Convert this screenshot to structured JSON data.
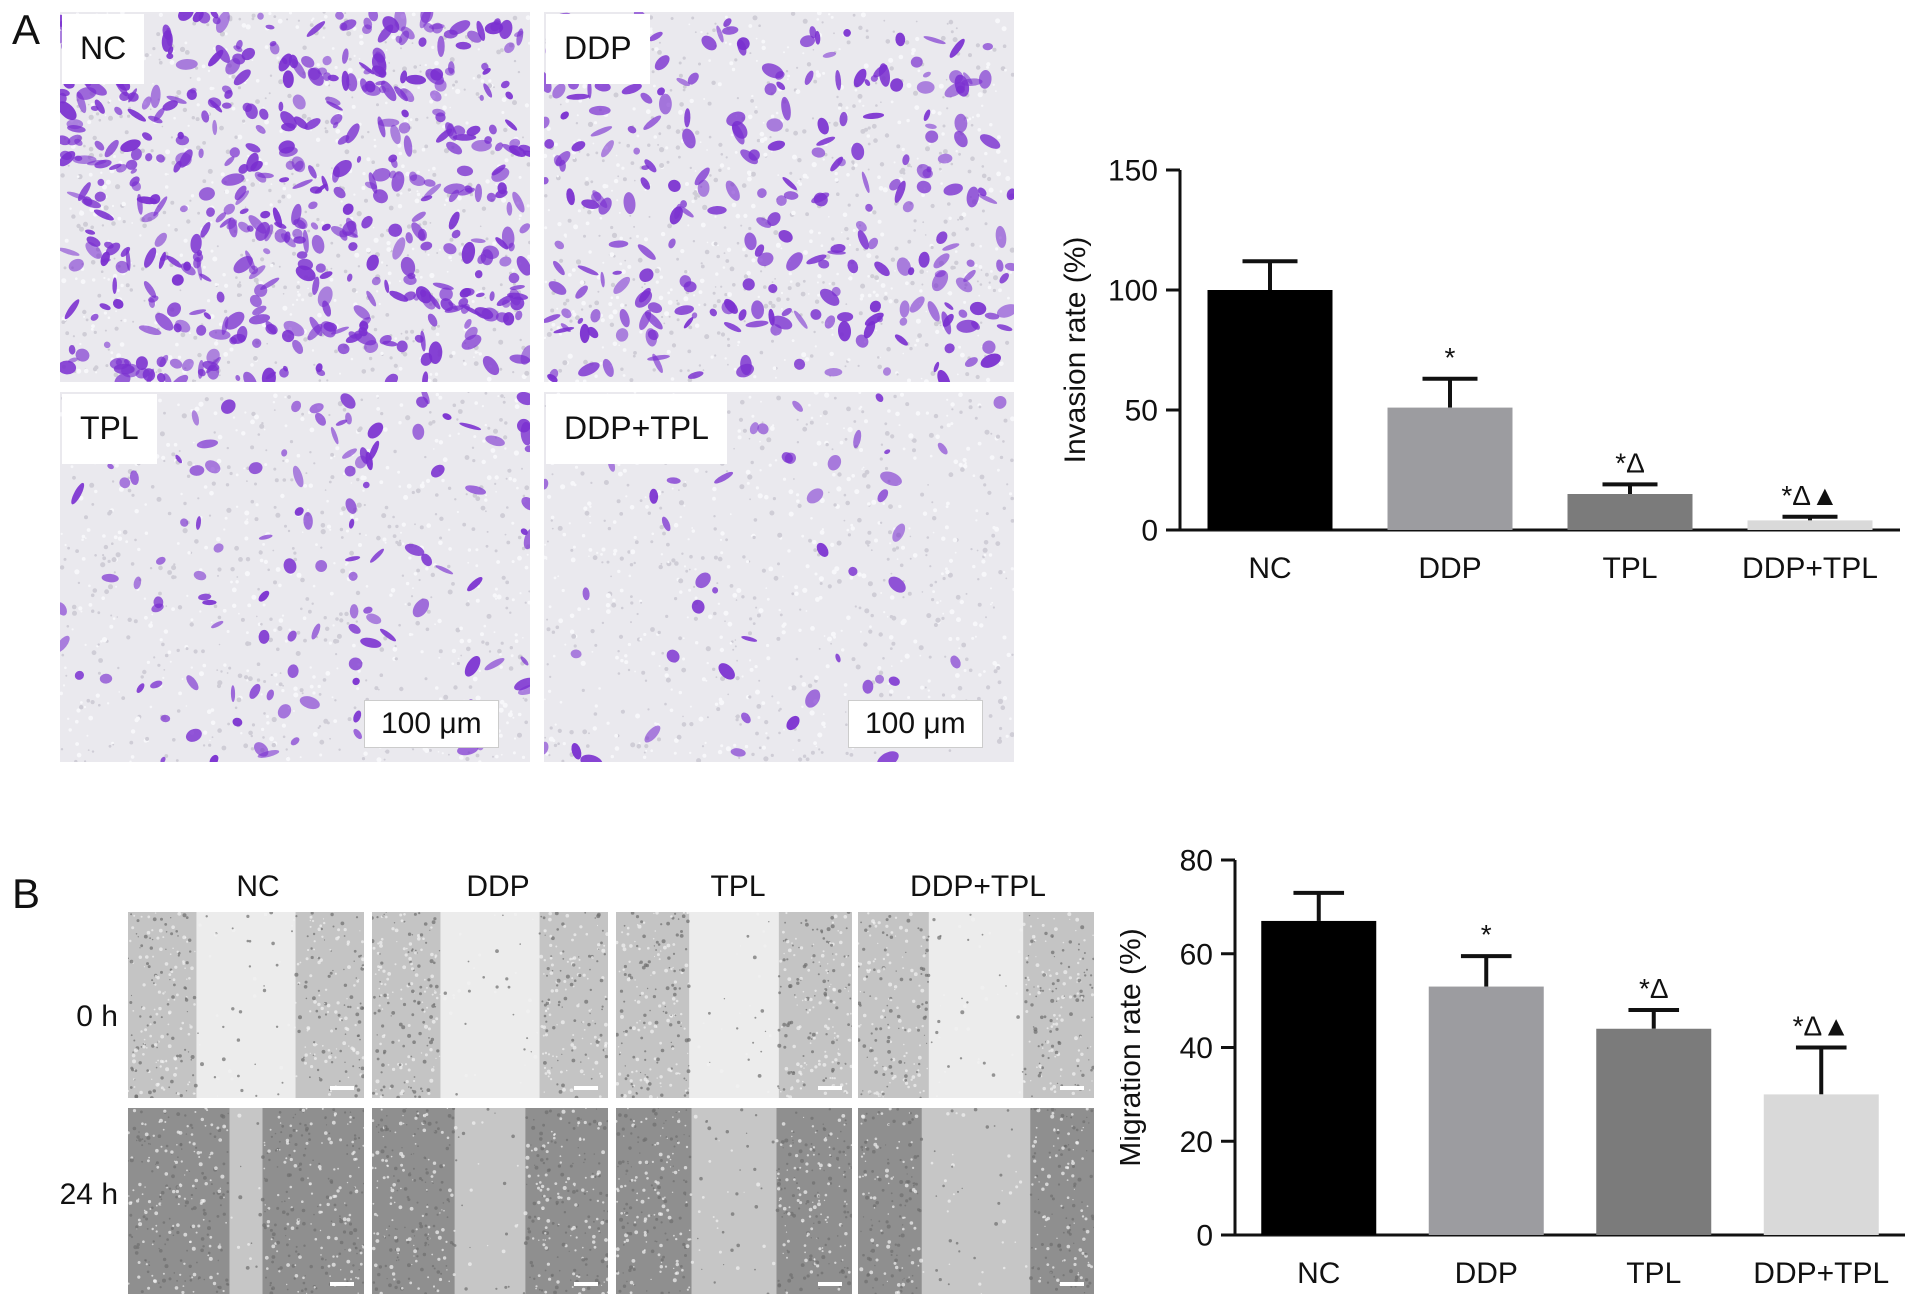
{
  "panelA": {
    "letter": "A",
    "images": [
      {
        "label": "NC",
        "density": 520,
        "stain": "#7a2fd0"
      },
      {
        "label": "DDP",
        "density": 260,
        "stain": "#7a2fd0"
      },
      {
        "label": "TPL",
        "density": 120,
        "stain": "#7a2fd0"
      },
      {
        "label": "DDP+TPL",
        "density": 50,
        "stain": "#7a2fd0"
      }
    ],
    "scale_label": "100 μm"
  },
  "panelB": {
    "letter": "B",
    "columns": [
      "NC",
      "DDP",
      "TPL",
      "DDP+TPL"
    ],
    "rows": [
      "0 h",
      "24 h"
    ],
    "gap_fraction": {
      "0 h": [
        0.42,
        0.42,
        0.38,
        0.4
      ],
      "24 h": [
        0.14,
        0.3,
        0.36,
        0.46
      ]
    }
  },
  "chart_data": [
    {
      "type": "bar",
      "categories": [
        "NC",
        "DDP",
        "TPL",
        "DDP+TPL"
      ],
      "values": [
        100,
        51,
        15,
        4
      ],
      "errors": [
        12,
        12,
        4,
        1.5
      ],
      "annotations": [
        "",
        "*",
        "*Δ",
        "*Δ▲"
      ],
      "colors": [
        "#000000",
        "#9c9ca0",
        "#7b7b7b",
        "#d9d9d9"
      ],
      "ylabel": "Invasion rate (%)",
      "ylim": [
        0,
        150
      ],
      "yticks": [
        0,
        50,
        100,
        150
      ]
    },
    {
      "type": "bar",
      "categories": [
        "NC",
        "DDP",
        "TPL",
        "DDP+TPL"
      ],
      "values": [
        67,
        53,
        44,
        30
      ],
      "errors": [
        6,
        6.5,
        4,
        10
      ],
      "annotations": [
        "",
        "*",
        "*Δ",
        "*Δ▲"
      ],
      "colors": [
        "#000000",
        "#9c9ca0",
        "#7b7b7b",
        "#d9d9d9"
      ],
      "ylabel": "Migration rate (%)",
      "ylim": [
        0,
        80
      ],
      "yticks": [
        0,
        20,
        40,
        60,
        80
      ]
    }
  ]
}
